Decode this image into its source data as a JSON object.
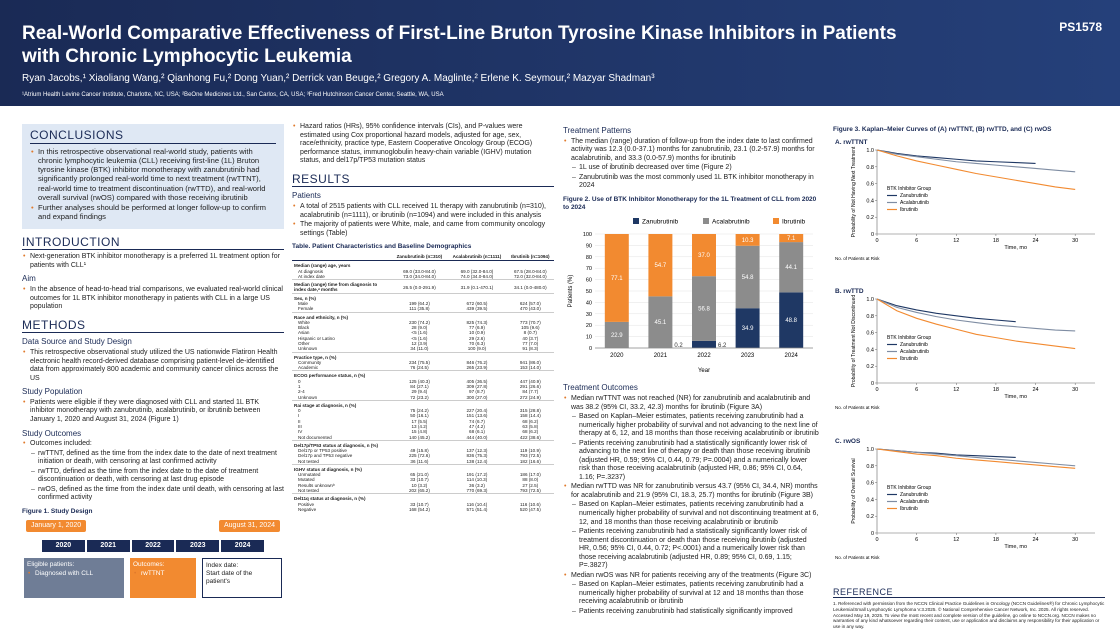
{
  "header": {
    "poster_id": "PS1578",
    "title": "Real-World Comparative Effectiveness of First-Line Bruton Tyrosine Kinase Inhibitors in Patients with Chronic Lymphocytic Leukemia",
    "authors": "Ryan Jacobs,¹ Xiaoliang Wang,² Qianhong Fu,² Dong Yuan,² Derrick van Beuge,² Gregory A. Maglinte,² Erlene K. Seymour,² Mazyar Shadman³",
    "affiliations": "¹Atrium Health Levine Cancer Institute, Charlotte, NC, USA; ²BeOne Medicines Ltd., San Carlos, CA, USA; ³Fred Hutchinson Cancer Center, Seattle, WA, USA"
  },
  "conclusions": {
    "heading": "CONCLUSIONS",
    "bullets": [
      {
        "text": "In this retrospective observational real-world study, patients with chronic lymphocytic leukemia (CLL) receiving first-line (1L) Bruton tyrosine kinase (BTK) inhibitor monotherapy with zanubrutinib had significantly prolonged real-world time to next treatment (rwTTNT), real-world time to treatment discontinuation (rwTTD), and real-world overall survival (rwOS) compared with those receiving ibrutinib"
      },
      {
        "text": "Further analyses should be performed at longer follow-up to confirm and expand findings"
      }
    ]
  },
  "introduction": {
    "heading": "INTRODUCTION",
    "bullets": [
      {
        "text": "Next-generation BTK inhibitor monotherapy is a preferred 1L treatment option for patients with CLL¹"
      }
    ],
    "aim_heading": "Aim",
    "aim_bullets": [
      {
        "text": "In the absence of head-to-head trial comparisons, we evaluated real-world clinical outcomes for 1L BTK inhibitor monotherapy in patients with CLL in a large US population"
      }
    ]
  },
  "methods": {
    "heading": "METHODS",
    "sections": [
      {
        "heading": "Data Source and Study Design",
        "bullets": [
          {
            "text": "This retrospective observational study utilized the US nationwide Flatiron Health electronic health record-derived database comprising patient-level de-identified data from approximately 800 academic and community cancer clinics across the US"
          }
        ]
      },
      {
        "heading": "Study Population",
        "bullets": [
          {
            "text": "Patients were eligible if they were diagnosed with CLL and started 1L BTK inhibitor monotherapy with zanubrutinib, acalabrutinib, or ibrutinib between January 1, 2020 and August 31, 2024 (Figure 1)"
          }
        ]
      },
      {
        "heading": "Study Outcomes",
        "bullets": [
          {
            "text": "Outcomes included:",
            "sub": [
              "rwTTNT, defined as the time from the index date to the date of next treatment initiation or death, with censoring at last confirmed activity",
              "rwTTD, defined as the time from the index date to the date of treatment discontinuation or death, with censoring at last drug episode",
              "rwOS, defined as the time from the index date until death, with censoring at last confirmed activity"
            ]
          }
        ]
      }
    ],
    "extra_bullets": [
      {
        "text": "Hazard ratios (HRs), 95% confidence intervals (CIs), and P-values were estimated using Cox proportional hazard models, adjusted for age, sex, race/ethnicity, practice type, Eastern Cooperative Oncology Group (ECOG) performance status, immunoglobulin heavy-chain variable (IGHV) mutation status, and del17p/TP53 mutation status"
      }
    ]
  },
  "figure1": {
    "title": "Figure 1. Study Design",
    "start": "January 1, 2020",
    "end": "August 31, 2024",
    "years": [
      "2020",
      "2021",
      "2022",
      "2023",
      "2024"
    ],
    "eligible_heading": "Eligible patients:",
    "eligible_items": [
      "Diagnosed with CLL"
    ],
    "outcomes_heading": "Outcomes:",
    "outcomes_items": [
      "rwTTNT"
    ],
    "index_heading": "Index date:",
    "index_text": "Start date of the patient's"
  },
  "results": {
    "heading": "RESULTS",
    "patients_heading": "Patients",
    "patients_bullets": [
      {
        "text": "A total of 2515 patients with CLL received 1L therapy with zanubrutinib (n=310), acalabrutinib (n=1111), or ibrutinib (n=1094) and were included in this analysis"
      },
      {
        "text": "The majority of patients were White, male, and came from community oncology settings (Table)"
      }
    ],
    "patterns_heading": "Treatment Patterns",
    "patterns_bullets": [
      {
        "text": "The median (range) duration of follow-up from the index date to last confirmed activity was 12.3 (0.0-37.1) months for zanubrutinib, 23.1 (0.2-57.9) months for acalabrutinib, and 33.3 (0.0-57.9) months for ibrutinib",
        "sub": [
          "1L use of ibrutinib decreased over time (Figure 2)",
          "Zanubrutinib was the most commonly used 1L BTK inhibitor monotherapy in 2024"
        ]
      }
    ],
    "outcomes_heading": "Treatment Outcomes",
    "outcomes_bullets": [
      {
        "text": "Median rwTTNT was not reached (NR) for zanubrutinib and acalabrutinib and was 38.2 (95% CI, 33.2, 42.3) months for ibrutinib (Figure 3A)",
        "sub": [
          "Based on Kaplan–Meier estimates, patients receiving zanubrutinib had a numerically higher probability of survival and not advancing to the next line of therapy at 6, 12, and 18 months than those receiving acalabrutinib or ibrutinib",
          "Patients receiving zanubrutinib had a statistically significantly lower risk of advancing to the next line of therapy or death than those receiving ibrutinib (adjusted HR, 0.59; 95% CI, 0.44, 0.79; P=.0004) and a numerically lower risk than those receiving acalabrutinib (adjusted HR, 0.86; 95% CI, 0.64, 1.16; P=.3237)"
        ]
      },
      {
        "text": "Median rwTTD was NR for zanubrutinib versus 43.7 (95% CI, 34.4, NR) months for acalabrutinib and 21.9 (95% CI, 18.3, 25.7) months for ibrutinib (Figure 3B)",
        "sub": [
          "Based on Kaplan–Meier estimates, patients receiving zanubrutinib had a numerically higher probability of survival and not discontinuing treatment at 6, 12, and 18 months than those receiving acalabrutinib or ibrutinib",
          "Patients receiving zanubrutinib had a statistically significantly lower risk of treatment discontinuation or death than those receiving ibrutinib (adjusted HR, 0.56; 95% CI, 0.44, 0.72; P<.0001) and a numerically lower risk than those receiving acalabrutinib (adjusted HR, 0.89; 95% CI, 0.69, 1.15; P=.3827)"
        ]
      },
      {
        "text": "Median rwOS was NR for patients receiving any of the treatments (Figure 3C)",
        "sub": [
          "Based on Kaplan–Meier estimates, patients receiving zanubrutinib had a numerically higher probability of survival at 12 and 18 months than those receiving acalabrutinib or ibrutinib",
          "Patients receiving zanubrutinib had statistically significantly improved"
        ]
      }
    ]
  },
  "table": {
    "title": "Table. Patient Characteristics and Baseline Demographics",
    "columns": [
      "Zanubrutinib (n=310)",
      "Acalabrutinib (n=1111)",
      "Ibrutinib (n=1094)"
    ],
    "sections": [
      {
        "label": "Median (range) age, years",
        "rows": [
          [
            "At diagnosis",
            "69.0 (33.0-84.0)",
            "69.0 (32.0-84.0)",
            "67.5 (28.0-84.0)"
          ],
          [
            "At index date",
            "73.0 (34.0-84.0)",
            "74.0 (34.0-84.0)",
            "72.0 (32.0-84.0)"
          ]
        ]
      },
      {
        "label": "Median (range) time from diagnosis to index date,ᵃ months",
        "values": [
          "26.5 (0.0-291.9)",
          "31.9 (0.1-470.1)",
          "34.1 (0.0-480.0)"
        ]
      },
      {
        "label": "Sex, n (%)",
        "rows": [
          [
            "Male",
            "199 (64.2)",
            "672 (60.5)",
            "624 (57.0)"
          ],
          [
            "Female",
            "111 (35.8)",
            "439 (39.5)",
            "470 (43.0)"
          ]
        ]
      },
      {
        "label": "Race and ethnicity, n (%)",
        "rows": [
          [
            "White",
            "230 (74.2)",
            "825 (74.3)",
            "773 (70.7)"
          ],
          [
            "Black",
            "28 (9.0)",
            "77 (6.9)",
            "105 (9.6)"
          ],
          [
            "Asian",
            "<5 (1.6)",
            "10 (0.9)",
            "8 (0.7)"
          ],
          [
            "Hispanic or Latino",
            "<5 (1.6)",
            "29 (2.6)",
            "40 (3.7)"
          ],
          [
            "Other",
            "12 (3.9)",
            "70 (6.3)",
            "77 (7.0)"
          ],
          [
            "Unknown",
            "34 (11.0)",
            "100 (9.0)",
            "91 (8.3)"
          ]
        ]
      },
      {
        "label": "Practice type, n (%)",
        "rows": [
          [
            "Community",
            "234 (75.5)",
            "846 (76.2)",
            "941 (86.0)"
          ],
          [
            "Academic",
            "76 (24.5)",
            "265 (23.9)",
            "153 (14.0)"
          ]
        ]
      },
      {
        "label": "ECOG performance status, n (%)",
        "rows": [
          [
            "0",
            "125 (40.3)",
            "405 (36.5)",
            "447 (40.9)"
          ],
          [
            "1",
            "84 (27.1)",
            "309 (27.8)",
            "291 (26.6)"
          ],
          [
            "2-4",
            "29 (9.4)",
            "97 (8.7)",
            "84 (7.7)"
          ],
          [
            "Unknown",
            "72 (23.2)",
            "300 (27.0)",
            "272 (24.9)"
          ]
        ]
      },
      {
        "label": "Rai stage at diagnosis, n (%)",
        "rows": [
          [
            "0",
            "75 (24.2)",
            "227 (20.4)",
            "315 (28.8)"
          ],
          [
            "I",
            "50 (16.1)",
            "151 (13.6)",
            "158 (14.4)"
          ],
          [
            "II",
            "17 (5.5)",
            "74 (6.7)",
            "68 (6.2)"
          ],
          [
            "III",
            "13 (4.2)",
            "47 (4.2)",
            "63 (5.8)"
          ],
          [
            "IV",
            "15 (4.8)",
            "68 (6.1)",
            "68 (6.2)"
          ],
          [
            "Not documented",
            "140 (45.2)",
            "444 (40.0)",
            "422 (38.6)"
          ]
        ]
      },
      {
        "label": "Del17p/TP53 status at diagnosis, n (%)",
        "rows": [
          [
            "Del17p or TP53 positive",
            "49 (15.8)",
            "137 (12.3)",
            "119 (10.9)"
          ],
          [
            "Del17p and TP53 negative",
            "225 (72.6)",
            "836 (75.3)",
            "793 (72.5)"
          ],
          [
            "Not tested",
            "36 (11.6)",
            "138 (12.4)",
            "182 (16.6)"
          ]
        ]
      },
      {
        "label": "IGHV status at diagnosis, n (%)",
        "rows": [
          [
            "Unmutated",
            "65 (21.0)",
            "191 (17.2)",
            "186 (17.0)"
          ],
          [
            "Mutated",
            "33 (10.7)",
            "114 (10.3)",
            "88 (8.0)"
          ],
          [
            "Results unknownᵇ",
            "10 (3.2)",
            "36 (3.2)",
            "27 (2.5)"
          ],
          [
            "Not tested",
            "202 (65.2)",
            "770 (69.3)",
            "793 (72.5)"
          ]
        ]
      },
      {
        "label": "Del11q status at diagnosis, n (%)",
        "rows": [
          [
            "Positive",
            "33 (10.7)",
            "116 (10.4)",
            "116 (10.6)"
          ],
          [
            "Negative",
            "168 (54.2)",
            "571 (51.4)",
            "520 (47.5)"
          ]
        ]
      }
    ]
  },
  "figure3": {
    "title": "Figure 3. Kaplan–Meier Curves of (A) rwTTNT, (B) rwTTD, and (C) rwOS"
  },
  "reference": {
    "heading": "REFERENCE",
    "text": "1. Referenced with permission from the NCCN Clinical Practice Guidelines in Oncology (NCCN Guidelines®) for Chronic Lymphocytic Leukemia/Small Lymphocytic Lymphoma V.3.2025. © National Comprehensive Cancer Network, Inc. 2025. All rights reserved. Accessed May 19, 2025. To view the most recent and complete version of the guideline, go online to NCCN.org. NCCN makes no warranties of any kind whatsoever regarding their content, use or application and disclaims any responsibility for their application or use in any way."
  },
  "chart_data": [
    {
      "type": "stacked_bar",
      "title": "Figure 2. Use of BTK Inhibitor Monotherapy for the 1L Treatment of CLL from 2020 to 2024",
      "categories": [
        "2020",
        "2021",
        "2022",
        "2023",
        "2024"
      ],
      "series": [
        {
          "name": "Zanubrutinib",
          "color": "#1f3864",
          "values": [
            null,
            0.2,
            6.2,
            34.9,
            48.8
          ]
        },
        {
          "name": "Acalabrutinib",
          "color": "#8c8c8c",
          "values": [
            22.9,
            45.1,
            56.8,
            54.8,
            44.1
          ]
        },
        {
          "name": "Ibrutinib",
          "color": "#f28a30",
          "values": [
            77.1,
            54.7,
            37.0,
            10.3,
            7.1
          ],
          "value_labels": [
            "77.1",
            "54.7",
            "37.0",
            "10.3",
            "7.1"
          ]
        }
      ],
      "ylim": [
        0,
        100
      ],
      "yticks": [
        0,
        10,
        20,
        30,
        40,
        50,
        60,
        70,
        80,
        90,
        100
      ],
      "ylabel": "Patients (%)",
      "xlabel": "Year"
    },
    {
      "type": "line",
      "panel": "A. rwTTNT",
      "ylabel": "Probability of Not Having Next Treatment",
      "xlabel": "Time, mo",
      "legend_title": "BTK Inhibitor Group",
      "x": [
        0,
        3,
        6,
        9,
        12,
        15,
        18,
        21,
        24,
        27,
        30
      ],
      "series": [
        {
          "name": "Zanubrutinib",
          "color": "#1f3864",
          "values": [
            1,
            0.96,
            0.93,
            0.91,
            0.89,
            0.87,
            0.86,
            0.85,
            0.84,
            null,
            null
          ]
        },
        {
          "name": "Acalabrutinib",
          "color": "#7f8da3",
          "values": [
            1,
            0.95,
            0.92,
            0.89,
            0.86,
            0.84,
            0.82,
            0.8,
            0.78,
            0.76,
            0.74
          ]
        },
        {
          "name": "Ibrutinib",
          "color": "#f28a30",
          "values": [
            1,
            0.93,
            0.87,
            0.82,
            0.77,
            0.72,
            0.68,
            0.64,
            0.6,
            0.56,
            0.53
          ]
        }
      ],
      "xlim": [
        0,
        33
      ],
      "xticks": [
        0,
        6,
        12,
        18,
        24,
        30
      ],
      "ylim": [
        0,
        1
      ],
      "yticks": [
        0,
        0.2,
        0.4,
        0.6,
        0.8,
        {
          "value": 1,
          "label": "1.0"
        }
      ],
      "at_risk_label": "No. of Patients at Risk"
    },
    {
      "type": "line",
      "panel": "B. rwTTD",
      "ylabel": "Probability of Treatment Not Discontinued",
      "xlabel": "Time, mo",
      "legend_title": "BTK Inhibitor Group",
      "x": [
        0,
        3,
        6,
        9,
        12,
        15,
        18,
        21,
        24,
        27,
        30
      ],
      "series": [
        {
          "name": "Zanubrutinib",
          "color": "#1f3864",
          "values": [
            1,
            0.92,
            0.87,
            0.83,
            0.8,
            0.77,
            0.75,
            0.73,
            null,
            null,
            null
          ]
        },
        {
          "name": "Acalabrutinib",
          "color": "#7f8da3",
          "values": [
            1,
            0.9,
            0.84,
            0.79,
            0.75,
            0.72,
            0.69,
            0.67,
            0.65,
            0.63,
            0.62
          ]
        },
        {
          "name": "Ibrutinib",
          "color": "#f28a30",
          "values": [
            1,
            0.86,
            0.77,
            0.7,
            0.64,
            0.58,
            0.54,
            0.5,
            0.47,
            0.44,
            0.41
          ]
        }
      ],
      "xlim": [
        0,
        33
      ],
      "xticks": [
        0,
        6,
        12,
        18,
        24,
        30
      ],
      "ylim": [
        0,
        1
      ],
      "yticks": [
        0,
        0.2,
        0.4,
        0.6,
        0.8,
        {
          "value": 1,
          "label": "1.0"
        }
      ],
      "at_risk_label": "No. of Patients at Risk"
    },
    {
      "type": "line",
      "panel": "C. rwOS",
      "ylabel": "Probability of Overall Survival",
      "xlabel": "Time, mo",
      "legend_title": "BTK Inhibitor Group",
      "x": [
        0,
        3,
        6,
        9,
        12,
        15,
        18,
        21,
        24,
        27,
        30
      ],
      "series": [
        {
          "name": "Zanubrutinib",
          "color": "#1f3864",
          "values": [
            1,
            0.98,
            0.96,
            0.95,
            0.93,
            0.92,
            0.91,
            0.9,
            null,
            null,
            null
          ]
        },
        {
          "name": "Acalabrutinib",
          "color": "#7f8da3",
          "values": [
            1,
            0.98,
            0.96,
            0.94,
            0.92,
            0.9,
            0.88,
            0.86,
            0.84,
            0.82,
            0.8
          ]
        },
        {
          "name": "Ibrutinib",
          "color": "#f28a30",
          "values": [
            1,
            0.97,
            0.94,
            0.92,
            0.89,
            0.87,
            0.85,
            0.83,
            0.81,
            0.79,
            0.77
          ]
        }
      ],
      "xlim": [
        0,
        33
      ],
      "xticks": [
        0,
        6,
        12,
        18,
        24,
        30
      ],
      "ylim": [
        0,
        1
      ],
      "yticks": [
        0,
        0.2,
        0.4,
        0.6,
        0.8,
        {
          "value": 1,
          "label": "1.0"
        }
      ],
      "at_risk_label": "No. of Patients at Risk"
    }
  ]
}
